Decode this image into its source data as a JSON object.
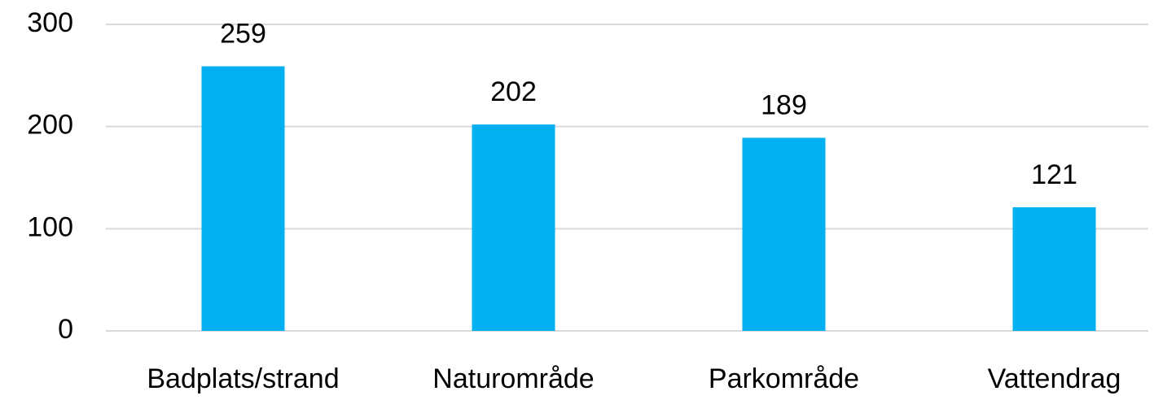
{
  "chart_data": {
    "type": "bar",
    "categories": [
      "Badplats/strand",
      "Naturområde",
      "Parkområde",
      "Vattendrag"
    ],
    "values": [
      259,
      202,
      189,
      121
    ],
    "color": "#00b0f0",
    "ylim": [
      0,
      300
    ],
    "yticks": [
      0,
      100,
      200,
      300
    ],
    "grid": true,
    "data_labels": true
  }
}
